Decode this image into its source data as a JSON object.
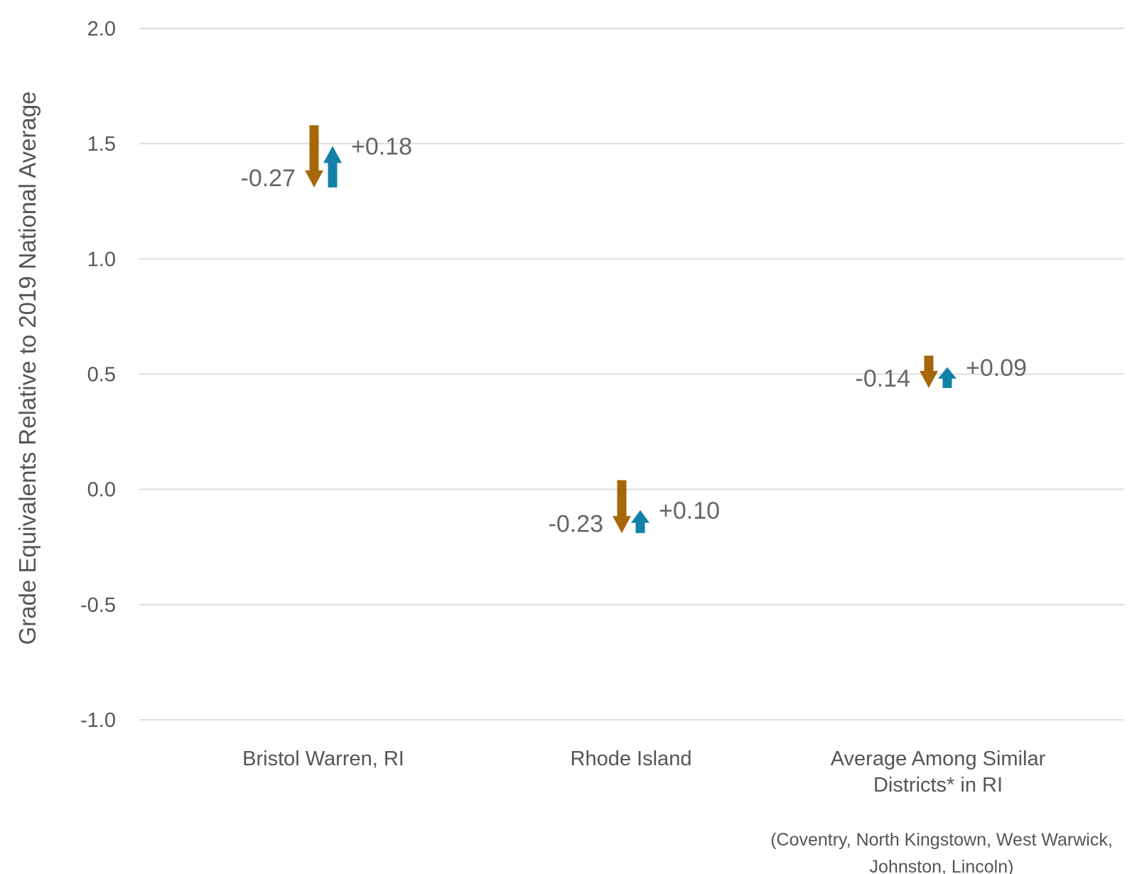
{
  "chart_data": {
    "type": "arrow",
    "ylabel": "Grade Equivalents Relative to 2019 National Average",
    "ylim": [
      -1.0,
      2.0
    ],
    "yticks": [
      {
        "value": 2.0,
        "label": "2.0"
      },
      {
        "value": 1.5,
        "label": "1.5"
      },
      {
        "value": 1.0,
        "label": "1.0"
      },
      {
        "value": 0.5,
        "label": "0.5"
      },
      {
        "value": 0.0,
        "label": "0.0"
      },
      {
        "value": -0.5,
        "label": "-0.5"
      },
      {
        "value": -1.0,
        "label": "-1.0"
      }
    ],
    "grid": true,
    "colors": {
      "decline": "#a6670a",
      "recovery": "#1380a8",
      "grid": "#dddddd"
    },
    "categories": [
      {
        "lines": [
          "Bristol Warren, RI"
        ],
        "decline": {
          "from": 1.58,
          "to": 1.31,
          "label": "-0.27"
        },
        "recovery": {
          "from": 1.31,
          "to": 1.49,
          "label": "+0.18"
        }
      },
      {
        "lines": [
          "Rhode Island"
        ],
        "decline": {
          "from": 0.04,
          "to": -0.19,
          "label": "-0.23"
        },
        "recovery": {
          "from": -0.19,
          "to": -0.09,
          "label": "+0.10"
        }
      },
      {
        "lines": [
          "Average Among Similar",
          "Districts* in RI"
        ],
        "note_lines": [
          "(Coventry, North Kingstown, West Warwick,",
          "Johnston, Lincoln)"
        ],
        "decline": {
          "from": 0.58,
          "to": 0.44,
          "label": "-0.14"
        },
        "recovery": {
          "from": 0.44,
          "to": 0.53,
          "label": "+0.09"
        }
      }
    ]
  }
}
